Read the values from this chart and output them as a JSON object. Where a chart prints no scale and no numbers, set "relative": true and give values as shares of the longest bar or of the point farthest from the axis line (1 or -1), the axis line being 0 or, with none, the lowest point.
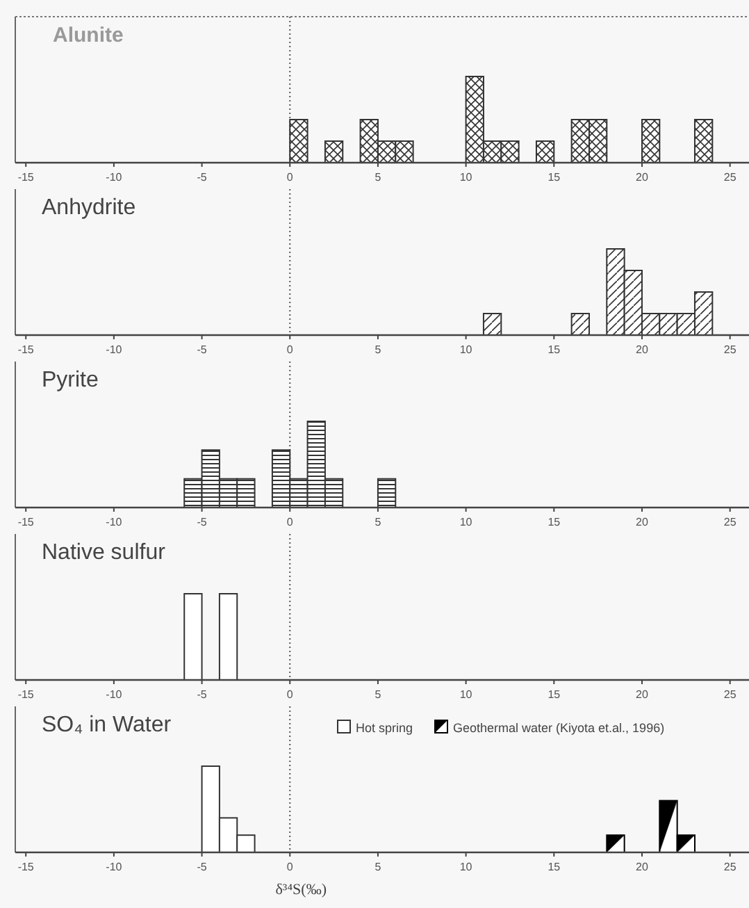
{
  "chart_data": [
    {
      "type": "bar",
      "title": "Alunite",
      "relative": true,
      "x": [
        0.5,
        2.5,
        4.5,
        5.5,
        6.5,
        10.5,
        11.5,
        12.5,
        14.5,
        16.5,
        17.5,
        20.5,
        23.5
      ],
      "values": [
        0.5,
        0.25,
        0.5,
        0.25,
        0.25,
        1,
        0.25,
        0.25,
        0.25,
        0.5,
        0.5,
        0.5,
        0.5
      ],
      "color": "#333333",
      "xlim": [
        -15.6,
        26
      ],
      "xticks": [
        -15,
        -10,
        -5,
        0,
        5,
        10,
        15,
        20,
        25
      ],
      "tick_labels": "x"
    },
    {
      "type": "bar",
      "title": "Anhydrite",
      "relative": true,
      "x": [
        11.5,
        16.5,
        18.5,
        19.5,
        20.5,
        21.5,
        22.5,
        23.5
      ],
      "values": [
        0.25,
        0.25,
        1,
        0.75,
        0.25,
        0.25,
        0.25,
        0.5
      ],
      "color": "#333333",
      "xlim": [
        -15.6,
        26
      ],
      "xticks": [
        -15,
        -10,
        -5,
        0,
        5,
        10,
        15,
        20,
        25
      ],
      "tick_labels": "x"
    },
    {
      "type": "bar",
      "title": "Pyrite",
      "relative": true,
      "x": [
        -5.5,
        -4.5,
        -3.5,
        -2.5,
        -0.5,
        0.5,
        1.5,
        2.5,
        5.5
      ],
      "values": [
        0.333,
        0.667,
        0.333,
        0.333,
        0.667,
        0.333,
        1,
        0.333,
        0.333
      ],
      "color": "#333333",
      "xlim": [
        -15.6,
        26
      ],
      "xticks": [
        -15,
        -10,
        -5,
        0,
        5,
        10,
        15,
        20,
        25
      ],
      "tick_labels": "x"
    },
    {
      "type": "bar",
      "title": "Native sulfur",
      "relative": true,
      "x": [
        -5.5,
        -3.5
      ],
      "values": [
        1,
        1
      ],
      "color": "#333333",
      "xlim": [
        -15.6,
        26
      ],
      "xticks": [
        -15,
        -10,
        -5,
        0,
        5,
        10,
        15,
        20,
        25
      ],
      "tick_labels": "x"
    },
    {
      "type": "bar",
      "title": "SO₄ in Water",
      "xlabel": "δ³⁴S(‰)",
      "relative": true,
      "legend": "top right",
      "xlim": [
        -15.6,
        26
      ],
      "xticks": [
        -15,
        -10,
        -5,
        0,
        5,
        10,
        15,
        20,
        25
      ],
      "tick_labels": "x",
      "series": [
        {
          "name": "Hot spring",
          "color": "#333333",
          "x": [
            -4.5,
            -3.5,
            -2.5
          ],
          "values": [
            1,
            0.4,
            0.2
          ]
        },
        {
          "name": "Geothermal water (Kiyota et.al., 1996)",
          "color": "#000000",
          "x": [
            18.5,
            21.5,
            22.5
          ],
          "values": [
            0.2,
            0.6,
            0.2
          ]
        }
      ]
    }
  ]
}
